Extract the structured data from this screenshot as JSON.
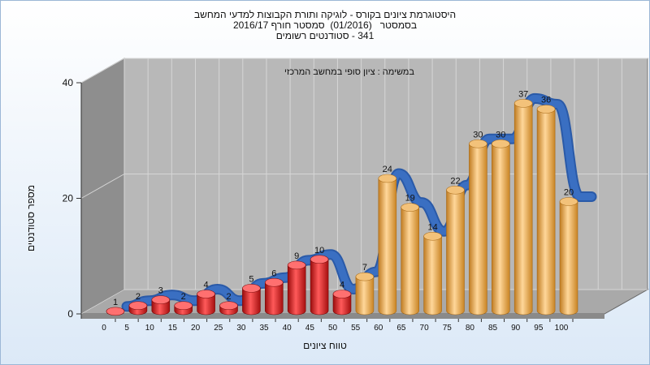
{
  "chart_data": {
    "type": "bar",
    "title_lines": [
      "היסטוגרמת ציונים בקורס - לוגיקה ותורת הקבוצות למדעי המחשב",
      "בסמסטר   (01/2016)  סמסטר חורף 2016/17",
      "341 - סטודנטים רשומים"
    ],
    "annotation": "במשימה : ציון סופי במחשב המרכזי",
    "xlabel": "טווח ציונים",
    "ylabel": "מספר סטודנטים",
    "categories": [
      "0",
      "5",
      "10",
      "15",
      "20",
      "25",
      "30",
      "35",
      "40",
      "45",
      "50",
      "55",
      "60",
      "65",
      "70",
      "75",
      "80",
      "85",
      "90",
      "95",
      "100"
    ],
    "values": [
      1,
      2,
      3,
      2,
      4,
      2,
      5,
      6,
      9,
      10,
      4,
      7,
      24,
      19,
      14,
      22,
      30,
      30,
      37,
      36,
      20
    ],
    "ylim": [
      0,
      40
    ],
    "yticks": [
      0,
      20,
      40
    ],
    "grid": true,
    "colors": {
      "low": "#d42020",
      "high": "#e7a440",
      "line": "#3a6fc2",
      "back_wall": "#b8b8b8",
      "side_wall": "#8e8e8e"
    },
    "color_threshold_index": 11
  }
}
